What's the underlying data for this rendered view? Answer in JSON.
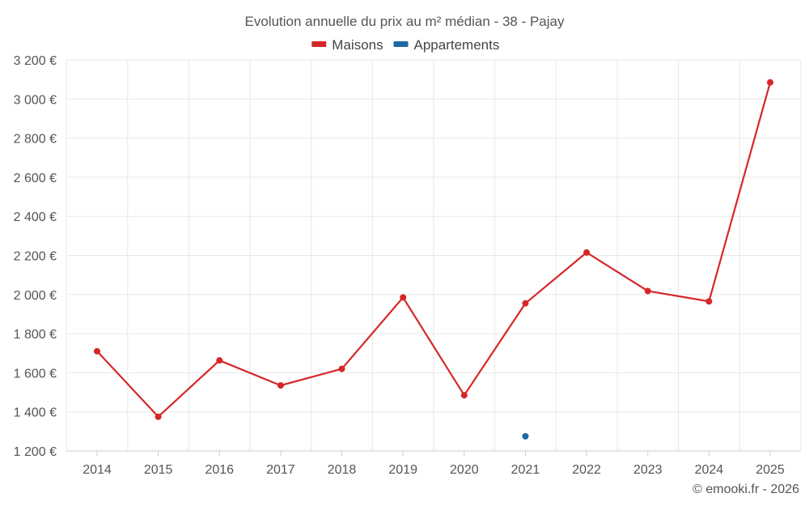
{
  "chart_data": {
    "type": "line",
    "title": "Evolution annuelle du prix au m² médian - 38 - Pajay",
    "categories": [
      "2014",
      "2015",
      "2016",
      "2017",
      "2018",
      "2019",
      "2020",
      "2021",
      "2022",
      "2023",
      "2024",
      "2025"
    ],
    "series": [
      {
        "name": "Maisons",
        "color": "#d62728",
        "values": [
          1710,
          1375,
          1663,
          1535,
          1620,
          1985,
          1485,
          1955,
          2215,
          2018,
          1965,
          3085
        ]
      },
      {
        "name": "Appartements",
        "color": "#1f6aa5",
        "values": [
          null,
          null,
          null,
          null,
          null,
          null,
          null,
          1275,
          null,
          null,
          null,
          null
        ]
      }
    ],
    "ylim": [
      1200,
      3200
    ],
    "yticks": [
      1200,
      1400,
      1600,
      1800,
      2000,
      2200,
      2400,
      2600,
      2800,
      3000,
      3200
    ],
    "ytick_labels": [
      "1 200 €",
      "1 400 €",
      "1 600 €",
      "1 800 €",
      "2 000 €",
      "2 200 €",
      "2 400 €",
      "2 600 €",
      "2 800 €",
      "3 000 €",
      "3 200 €"
    ],
    "xlabel": "",
    "ylabel": "",
    "grid": true,
    "legend_position": "top-center"
  },
  "credit": "© emooki.fr - 2026"
}
